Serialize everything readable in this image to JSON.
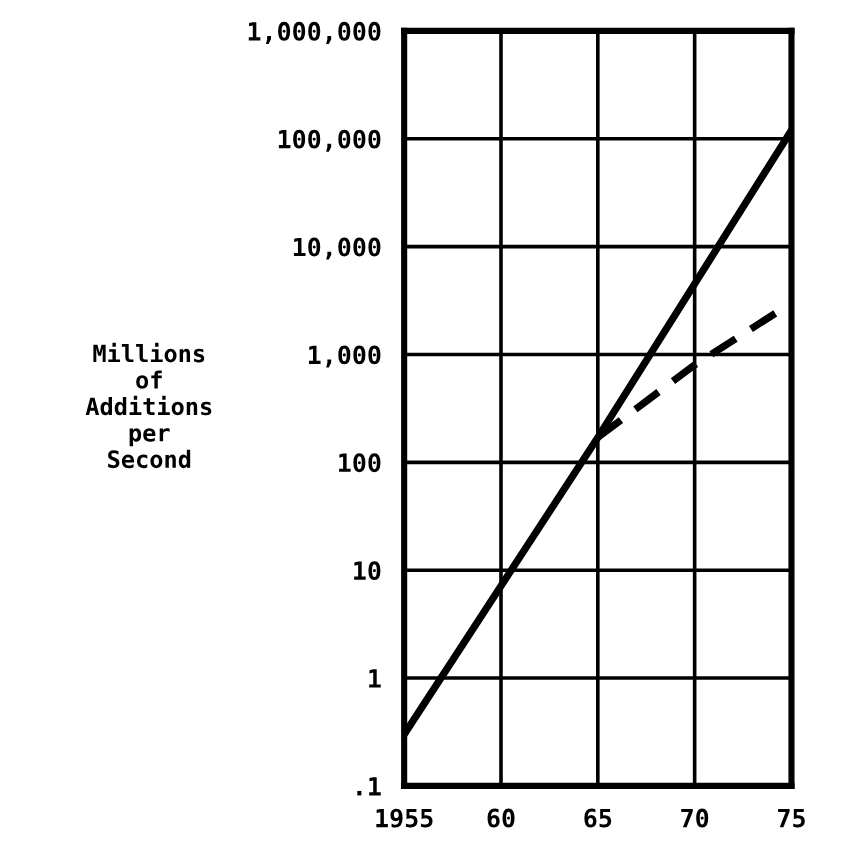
{
  "chart_data": {
    "type": "line",
    "ylabel": "Millions\nof\nAdditions\nper\nSecond",
    "log": "y",
    "grid": true,
    "marker": "none",
    "xlim": [
      1955,
      1975
    ],
    "xticks": [
      {
        "value": 1955,
        "label": "1955"
      },
      {
        "value": 1960,
        "label": "60"
      },
      {
        "value": 1965,
        "label": "65"
      },
      {
        "value": 1970,
        "label": "70"
      },
      {
        "value": 1975,
        "label": "75"
      }
    ],
    "ylim": [
      0.1,
      1000000
    ],
    "yticks": [
      {
        "value": 0.1,
        "label": ".1"
      },
      1,
      10,
      100,
      {
        "value": 1000,
        "label": "1,000"
      },
      {
        "value": 10000,
        "label": "10,000"
      },
      {
        "value": 100000,
        "label": "100,000"
      },
      {
        "value": 1000000,
        "label": "1,000,000"
      }
    ],
    "series": [
      {
        "color": "#000000",
        "line_style": "solid",
        "x": [
          1955,
          1965,
          1975
        ],
        "values": [
          0.3,
          170,
          120000
        ]
      },
      {
        "color": "#000000",
        "line_style": "dashed",
        "x": [
          1965,
          1970,
          1975
        ],
        "values": [
          170,
          800,
          3000
        ]
      }
    ]
  }
}
